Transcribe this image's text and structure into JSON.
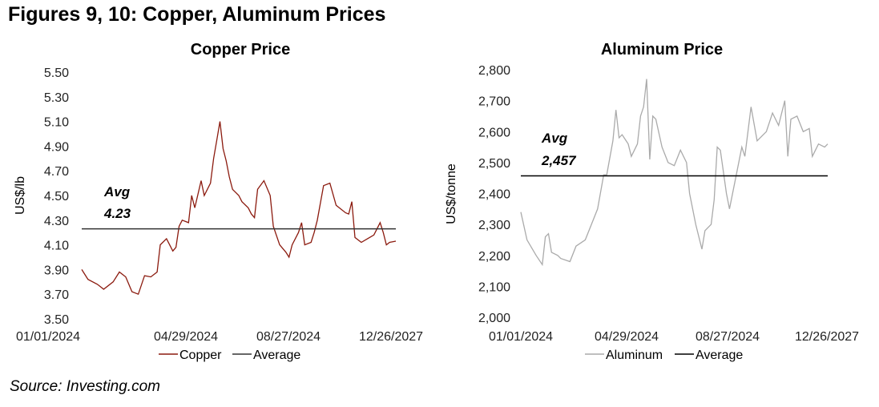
{
  "figure_title": "Figures 9, 10: Copper, Aluminum Prices",
  "source": "Source: Investing.com",
  "chart_data": [
    {
      "type": "line",
      "title": "Copper Price",
      "xlabel": "",
      "ylabel": "US$/lb",
      "ylim": [
        3.5,
        5.5
      ],
      "yticks": [
        "3.50",
        "3.70",
        "3.90",
        "4.10",
        "4.30",
        "4.50",
        "4.70",
        "4.90",
        "5.10",
        "5.30",
        "5.50"
      ],
      "ytick_values": [
        3.5,
        3.7,
        3.9,
        4.1,
        4.3,
        4.5,
        4.7,
        4.9,
        5.1,
        5.3,
        5.5
      ],
      "xticks": [
        "01/01/2024",
        "04/29/2024",
        "08/27/2024",
        "12/26/2027"
      ],
      "xtick_positions": [
        0,
        0.333,
        0.667,
        1
      ],
      "grid": false,
      "legend": "bottom",
      "annotation": {
        "label": "Avg",
        "value_label": "4.23"
      },
      "series": [
        {
          "name": "Copper",
          "color": "#8B1A0E",
          "x": [
            0,
            0.02,
            0.05,
            0.07,
            0.1,
            0.12,
            0.14,
            0.16,
            0.18,
            0.2,
            0.22,
            0.24,
            0.25,
            0.27,
            0.29,
            0.3,
            0.31,
            0.32,
            0.34,
            0.35,
            0.36,
            0.38,
            0.39,
            0.41,
            0.42,
            0.43,
            0.44,
            0.45,
            0.46,
            0.47,
            0.48,
            0.5,
            0.51,
            0.53,
            0.54,
            0.55,
            0.56,
            0.58,
            0.6,
            0.61,
            0.63,
            0.65,
            0.66,
            0.67,
            0.69,
            0.7,
            0.71,
            0.73,
            0.74,
            0.75,
            0.77,
            0.79,
            0.81,
            0.84,
            0.85,
            0.86,
            0.87,
            0.89,
            0.91,
            0.93,
            0.95,
            0.96,
            0.97,
            0.98,
            1
          ],
          "values": [
            3.9,
            3.82,
            3.78,
            3.74,
            3.8,
            3.88,
            3.84,
            3.72,
            3.7,
            3.85,
            3.84,
            3.88,
            4.1,
            4.15,
            4.05,
            4.08,
            4.25,
            4.3,
            4.28,
            4.5,
            4.4,
            4.62,
            4.5,
            4.6,
            4.8,
            4.95,
            5.1,
            4.88,
            4.78,
            4.65,
            4.55,
            4.5,
            4.45,
            4.4,
            4.35,
            4.32,
            4.55,
            4.62,
            4.5,
            4.25,
            4.1,
            4.04,
            4.0,
            4.1,
            4.2,
            4.28,
            4.1,
            4.12,
            4.2,
            4.3,
            4.58,
            4.6,
            4.42,
            4.36,
            4.35,
            4.45,
            4.16,
            4.12,
            4.15,
            4.18,
            4.28,
            4.2,
            4.1,
            4.12,
            4.13
          ]
        },
        {
          "name": "Average",
          "color": "#333333",
          "constant": 4.23
        }
      ]
    },
    {
      "type": "line",
      "title": "Aluminum Price",
      "xlabel": "",
      "ylabel": "US$/tonne",
      "ylim": [
        2000,
        2800
      ],
      "yticks": [
        "2,000",
        "2,100",
        "2,200",
        "2,300",
        "2,400",
        "2,500",
        "2,600",
        "2,700",
        "2,800"
      ],
      "ytick_values": [
        2000,
        2100,
        2200,
        2300,
        2400,
        2500,
        2600,
        2700,
        2800
      ],
      "xticks": [
        "01/01/2024",
        "04/29/2024",
        "08/27/2024",
        "12/26/2027"
      ],
      "xtick_positions": [
        0,
        0.333,
        0.667,
        1
      ],
      "grid": false,
      "legend": "bottom",
      "annotation": {
        "label": "Avg",
        "value_label": "2,457"
      },
      "series": [
        {
          "name": "Aluminum",
          "color": "#AAAAAA",
          "x": [
            0,
            0.02,
            0.05,
            0.07,
            0.08,
            0.09,
            0.1,
            0.12,
            0.13,
            0.16,
            0.18,
            0.21,
            0.23,
            0.25,
            0.27,
            0.28,
            0.3,
            0.31,
            0.32,
            0.33,
            0.35,
            0.36,
            0.38,
            0.39,
            0.4,
            0.41,
            0.42,
            0.43,
            0.44,
            0.46,
            0.48,
            0.5,
            0.52,
            0.54,
            0.55,
            0.57,
            0.59,
            0.6,
            0.62,
            0.63,
            0.64,
            0.65,
            0.67,
            0.68,
            0.7,
            0.72,
            0.73,
            0.75,
            0.77,
            0.8,
            0.82,
            0.84,
            0.86,
            0.87,
            0.88,
            0.9,
            0.92,
            0.94,
            0.95,
            0.97,
            0.99,
            1
          ],
          "values": [
            2340,
            2250,
            2200,
            2170,
            2260,
            2270,
            2210,
            2200,
            2190,
            2180,
            2230,
            2250,
            2300,
            2350,
            2460,
            2460,
            2570,
            2670,
            2580,
            2590,
            2560,
            2520,
            2560,
            2650,
            2680,
            2770,
            2510,
            2650,
            2640,
            2550,
            2500,
            2490,
            2540,
            2500,
            2400,
            2300,
            2220,
            2280,
            2300,
            2380,
            2550,
            2540,
            2400,
            2350,
            2450,
            2550,
            2520,
            2680,
            2570,
            2600,
            2660,
            2620,
            2700,
            2520,
            2640,
            2650,
            2600,
            2610,
            2520,
            2560,
            2550,
            2560
          ]
        },
        {
          "name": "Average",
          "color": "#000000",
          "constant": 2457
        }
      ]
    }
  ]
}
